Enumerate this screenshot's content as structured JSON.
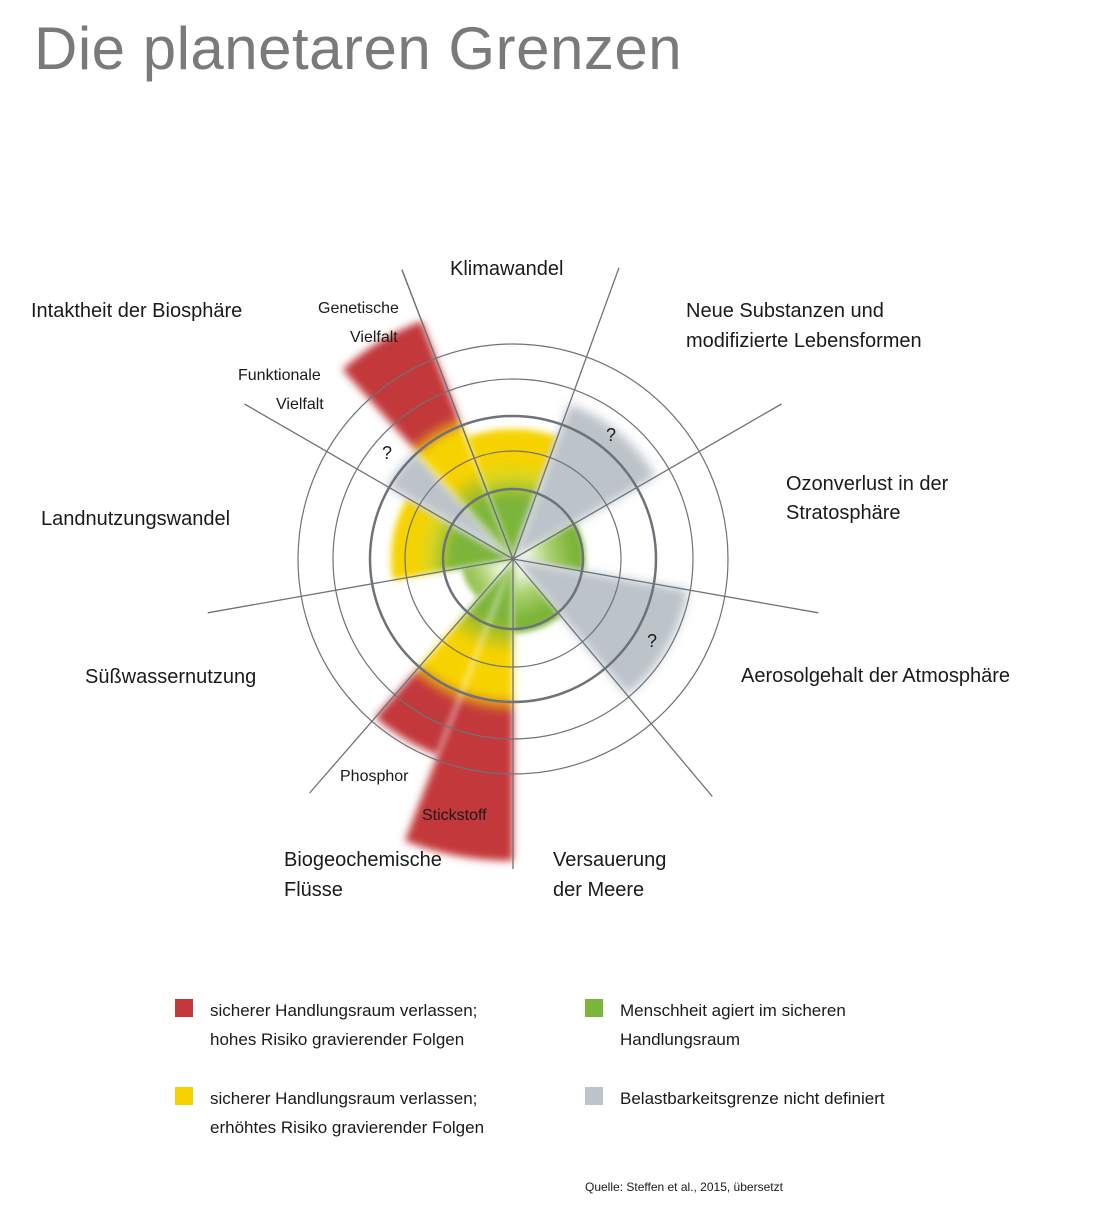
{
  "title": "Die planetaren Grenzen",
  "boundaries": {
    "klimawandel": {
      "label": "Klimawandel",
      "status": "yellow"
    },
    "neue_substanzen": {
      "label_line1": "Neue Substanzen und",
      "label_line2": "modifizierte Lebensformen",
      "status": "grey",
      "marker": "?"
    },
    "ozonverlust": {
      "label_line1": "Ozonverlust in der",
      "label_line2": "Stratosphäre",
      "status": "green"
    },
    "aerosolgehalt": {
      "label": "Aerosolgehalt der Atmosphäre",
      "status": "grey",
      "marker": "?"
    },
    "versauerung": {
      "label_line1": "Versauerung",
      "label_line2": "der Meere",
      "status": "green"
    },
    "biogeochemische_fluesse": {
      "label_line1": "Biogeochemische",
      "label_line2": "Flüsse",
      "phosphor": {
        "label": "Phosphor",
        "status": "red"
      },
      "stickstoff": {
        "label": "Stickstoff",
        "status": "red"
      }
    },
    "suesswassernutzung": {
      "label": "Süßwassernutzung",
      "status": "green"
    },
    "landnutzungswandel": {
      "label": "Landnutzungswandel",
      "status": "yellow"
    },
    "intaktheit_biosphaere": {
      "label": "Intaktheit der Biosphäre",
      "genetische_vielfalt": {
        "label_line1": "Genetische",
        "label_line2": "Vielfalt",
        "status": "red"
      },
      "funktionale_vielfalt": {
        "label_line1": "Funktionale",
        "label_line2": "Vielfalt",
        "status": "grey",
        "marker": "?"
      }
    }
  },
  "legend": {
    "red": {
      "line1": "sicherer Handlungsraum verlassen;",
      "line2": "hohes Risiko gravierender Folgen",
      "color": "#c3393b"
    },
    "yellow": {
      "line1": "sicherer Handlungsraum verlassen;",
      "line2": "erhöhtes Risiko gravierender Folgen",
      "color": "#f6d300"
    },
    "green": {
      "line1": "Menschheit agiert im sicheren",
      "line2": "Handlungsraum",
      "color": "#7db53a"
    },
    "grey": {
      "line1": "Belastbarkeitsgrenze nicht definiert",
      "color": "#bcc3c9"
    }
  },
  "source": "Quelle: Steffen et al., 2015, übersetzt",
  "colors": {
    "red": "#c3393b",
    "yellow": "#f6d300",
    "green": "#7db53a",
    "grey": "#bcc3c9",
    "lines": "#6d7378"
  }
}
